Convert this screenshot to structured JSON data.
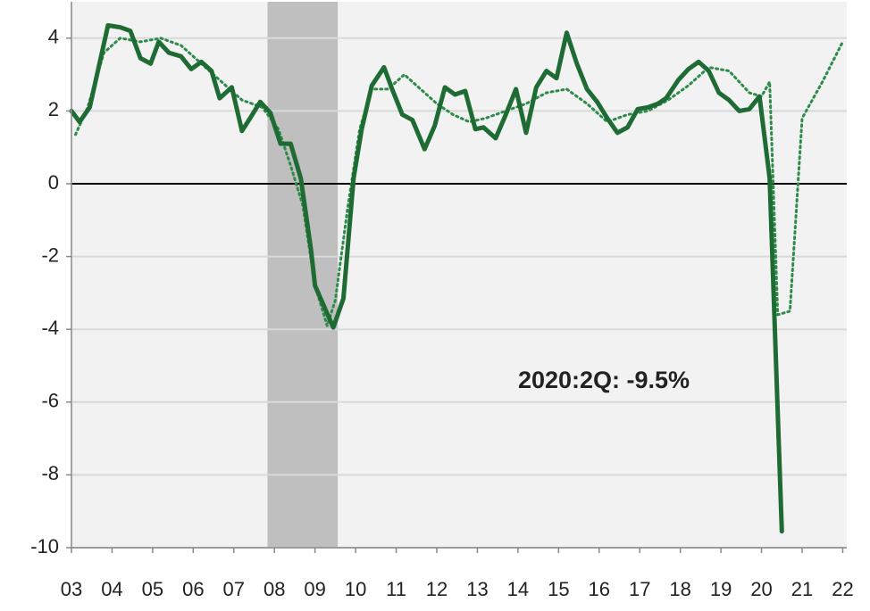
{
  "chart_data": {
    "type": "line",
    "annotation": "2020:2Q: -9.5%",
    "xlim": [
      3,
      22.1
    ],
    "xticks": [
      {
        "value": 3,
        "label": "03"
      },
      {
        "value": 4,
        "label": "04"
      },
      {
        "value": 5,
        "label": "05"
      },
      {
        "value": 6,
        "label": "06"
      },
      {
        "value": 7,
        "label": "07"
      },
      {
        "value": 8,
        "label": "08"
      },
      {
        "value": 9,
        "label": "09"
      },
      {
        "value": 10,
        "label": "10"
      },
      11,
      12,
      13,
      14,
      15,
      16,
      17,
      18,
      19,
      20,
      21,
      22
    ],
    "ylim": [
      -10,
      5
    ],
    "yticks": [
      -10,
      -8,
      -6,
      -4,
      -2,
      0,
      2,
      4
    ],
    "grid": true,
    "shaded_regions": [
      [
        7.83,
        9.56
      ]
    ],
    "shade_color": "#bfbfbf",
    "series": [
      {
        "color": "#1e6b34",
        "style": "solid",
        "x": [
          3.0,
          3.2,
          3.45,
          3.9,
          4.2,
          4.45,
          4.7,
          4.95,
          5.15,
          5.4,
          5.7,
          5.95,
          6.2,
          6.45,
          6.65,
          6.95,
          7.2,
          7.4,
          7.65,
          7.9,
          8.15,
          8.4,
          8.65,
          8.9,
          9.0,
          9.45,
          9.7,
          9.95,
          10.15,
          10.4,
          10.7,
          10.9,
          11.15,
          11.4,
          11.7,
          11.95,
          12.2,
          12.45,
          12.7,
          12.95,
          13.15,
          13.45,
          13.7,
          13.95,
          14.2,
          14.45,
          14.7,
          14.95,
          15.2,
          15.45,
          15.7,
          15.95,
          16.2,
          16.45,
          16.7,
          16.95,
          17.2,
          17.45,
          17.65,
          17.95,
          18.2,
          18.45,
          18.7,
          18.95,
          19.2,
          19.45,
          19.7,
          19.95,
          20.2,
          20.5
        ],
        "values": [
          2.0,
          1.7,
          2.1,
          4.35,
          4.3,
          4.2,
          3.45,
          3.3,
          3.9,
          3.6,
          3.5,
          3.15,
          3.35,
          3.1,
          2.35,
          2.65,
          1.45,
          1.8,
          2.25,
          1.95,
          1.1,
          1.1,
          0.15,
          -1.8,
          -2.8,
          -3.95,
          -3.15,
          0.15,
          1.5,
          2.7,
          3.2,
          2.6,
          1.9,
          1.75,
          0.95,
          1.6,
          2.65,
          2.45,
          2.55,
          1.5,
          1.55,
          1.25,
          1.9,
          2.6,
          1.4,
          2.65,
          3.1,
          2.9,
          4.15,
          3.3,
          2.6,
          2.25,
          1.8,
          1.4,
          1.55,
          2.05,
          2.1,
          2.2,
          2.35,
          2.85,
          3.15,
          3.35,
          3.1,
          2.5,
          2.3,
          2.0,
          2.05,
          2.4,
          0.15,
          -9.55
        ]
      },
      {
        "color": "#2e8b4a",
        "style": "dotted",
        "x": [
          3.1,
          3.4,
          3.8,
          4.2,
          4.7,
          5.2,
          5.7,
          6.2,
          6.7,
          7.2,
          7.7,
          8.1,
          8.4,
          8.7,
          9.0,
          9.3,
          9.5,
          9.8,
          10.1,
          10.4,
          10.8,
          11.2,
          11.6,
          12.0,
          12.4,
          12.8,
          13.2,
          13.7,
          14.2,
          14.7,
          15.2,
          15.7,
          16.2,
          16.7,
          17.2,
          17.7,
          18.2,
          18.7,
          19.2,
          19.7,
          20.0,
          20.2,
          20.4,
          20.7,
          21.0,
          21.5,
          22.0
        ],
        "values": [
          1.35,
          2.1,
          3.6,
          4.0,
          3.9,
          4.0,
          3.8,
          3.3,
          2.8,
          2.3,
          2.1,
          1.5,
          0.5,
          -0.6,
          -2.8,
          -3.9,
          -3.2,
          -0.7,
          1.5,
          2.6,
          2.6,
          3.0,
          2.6,
          2.2,
          1.9,
          1.7,
          1.8,
          2.0,
          2.2,
          2.5,
          2.6,
          2.2,
          1.7,
          1.9,
          2.0,
          2.3,
          2.7,
          3.2,
          3.1,
          2.5,
          2.4,
          2.8,
          -3.6,
          -3.5,
          1.8,
          2.8,
          3.9
        ]
      }
    ]
  }
}
